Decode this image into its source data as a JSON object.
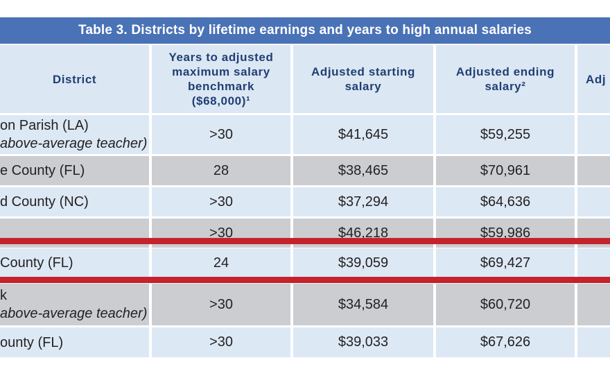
{
  "table": {
    "title": "Table 3. Districts by lifetime earnings and years to high annual salaries",
    "headers": {
      "district": "District",
      "years": "Years to adjusted maximum salary benchmark ($68,000)¹",
      "start": "Adjusted starting salary",
      "end": "Adjusted ending salary²",
      "partial": "Adj"
    },
    "rows": [
      {
        "district": "on Parish (LA)",
        "note": "above-average teacher)",
        "years": ">30",
        "start": "$41,645",
        "end": "$59,255"
      },
      {
        "district": "e County (FL)",
        "note": "",
        "years": "28",
        "start": "$38,465",
        "end": "$70,961"
      },
      {
        "district": "d County (NC)",
        "note": "",
        "years": ">30",
        "start": "$37,294",
        "end": "$64,636"
      },
      {
        "district": "",
        "note": "",
        "years": ">30",
        "start": "$46,218",
        "end": "$59,986"
      },
      {
        "district": "County (FL)",
        "note": "",
        "years": "24",
        "start": "$39,059",
        "end": "$69,427"
      },
      {
        "district": "k",
        "note": "above-average teacher)",
        "years": ">30",
        "start": "$34,584",
        "end": "$60,720"
      },
      {
        "district": "ounty (FL)",
        "note": "",
        "years": ">30",
        "start": "$39,033",
        "end": "$67,626"
      }
    ]
  },
  "colors": {
    "title_bg": "#4a72b6",
    "header_bg": "#dce7f4",
    "row_light": "#dde8f5",
    "row_grey": "#cbcdd0",
    "highlight_line": "#c4232c"
  }
}
